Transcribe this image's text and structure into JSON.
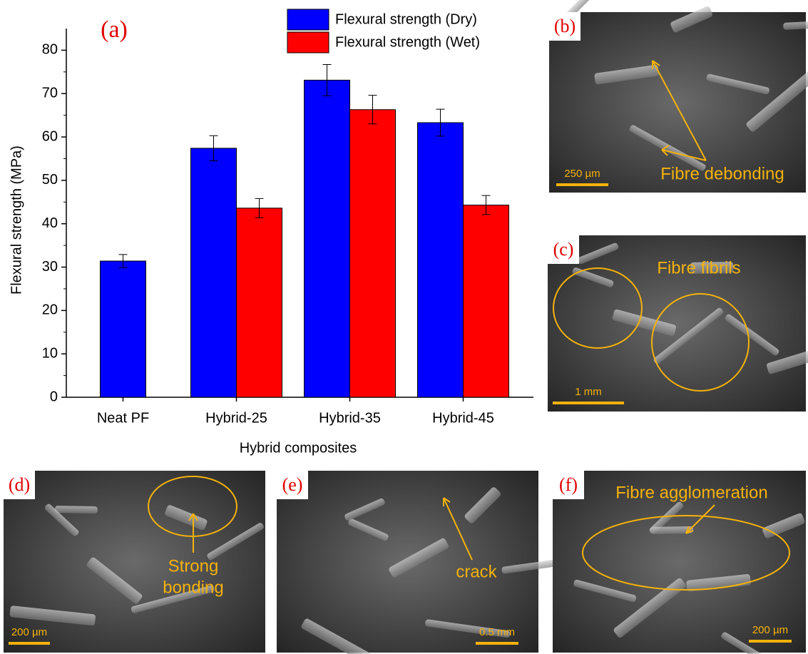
{
  "chart_data": {
    "type": "bar",
    "panel_label": "(a)",
    "x_label": "Hybrid composites",
    "y_label": "Flexural strength (MPa)",
    "categories": [
      "Neat PF",
      "Hybrid-25",
      "Hybrid-35",
      "Hybrid-45"
    ],
    "series": [
      {
        "name": "Flexural strength (Dry)",
        "color": "#0000ff",
        "values": [
          31.4,
          57.4,
          73.1,
          63.3
        ],
        "errors": [
          1.5,
          2.9,
          3.6,
          3.1
        ]
      },
      {
        "name": "Flexural strength (Wet)",
        "color": "#ff0000",
        "values": [
          null,
          43.6,
          66.3,
          44.3
        ],
        "errors": [
          null,
          2.2,
          3.3,
          2.2
        ]
      }
    ],
    "ylim": [
      0,
      85
    ],
    "yticks": [
      0,
      10,
      20,
      30,
      40,
      50,
      60,
      70,
      80
    ],
    "grid": false,
    "legend": "top"
  },
  "panels": [
    {
      "label": "(b)",
      "annotations": [
        "Fibre debonding"
      ],
      "scale": "250 µm"
    },
    {
      "label": "(c)",
      "annotations": [
        "Fibre fibrils"
      ],
      "scale": "1 mm"
    },
    {
      "label": "(d)",
      "annotations": [
        "Strong",
        "bonding"
      ],
      "scale": "200 µm"
    },
    {
      "label": "(e)",
      "annotations": [
        "crack"
      ],
      "scale": "0.5 mm"
    },
    {
      "label": "(f)",
      "annotations": [
        "Fibre agglomeration"
      ],
      "scale": "200 µm"
    }
  ]
}
